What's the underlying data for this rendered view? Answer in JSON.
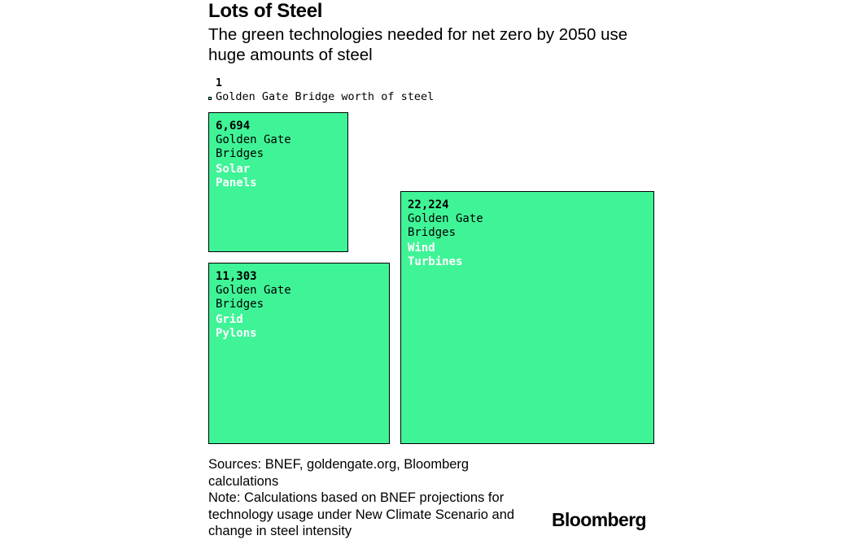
{
  "title": "Lots of Steel",
  "subtitle": "The green technologies needed for net zero by 2050 use huge amounts of steel",
  "legend": {
    "value": "1",
    "label": "Golden Gate Bridge worth of steel"
  },
  "chart_data": {
    "type": "area-proportional squares",
    "unit": "Golden Gate Bridges",
    "reference": {
      "value": 1,
      "label": "Golden Gate Bridge worth of steel"
    },
    "items": [
      {
        "category": "Solar Panels",
        "value": 6694,
        "value_label": "6,694",
        "unit_label": "Golden Gate Bridges"
      },
      {
        "category": "Grid Pylons",
        "value": 11303,
        "value_label": "11,303",
        "unit_label": "Golden Gate Bridges"
      },
      {
        "category": "Wind Turbines",
        "value": 22224,
        "value_label": "22,224",
        "unit_label": "Golden Gate Bridges"
      }
    ],
    "fill_color": "#3ff497",
    "label_color": "#ffffff"
  },
  "footnote": {
    "sources": "Sources: BNEF, goldengate.org, Bloomberg calculations",
    "note": "Note: Calculations based on BNEF projections for technology usage under New Climate Scenario and change in steel intensity"
  },
  "brand": "Bloomberg"
}
